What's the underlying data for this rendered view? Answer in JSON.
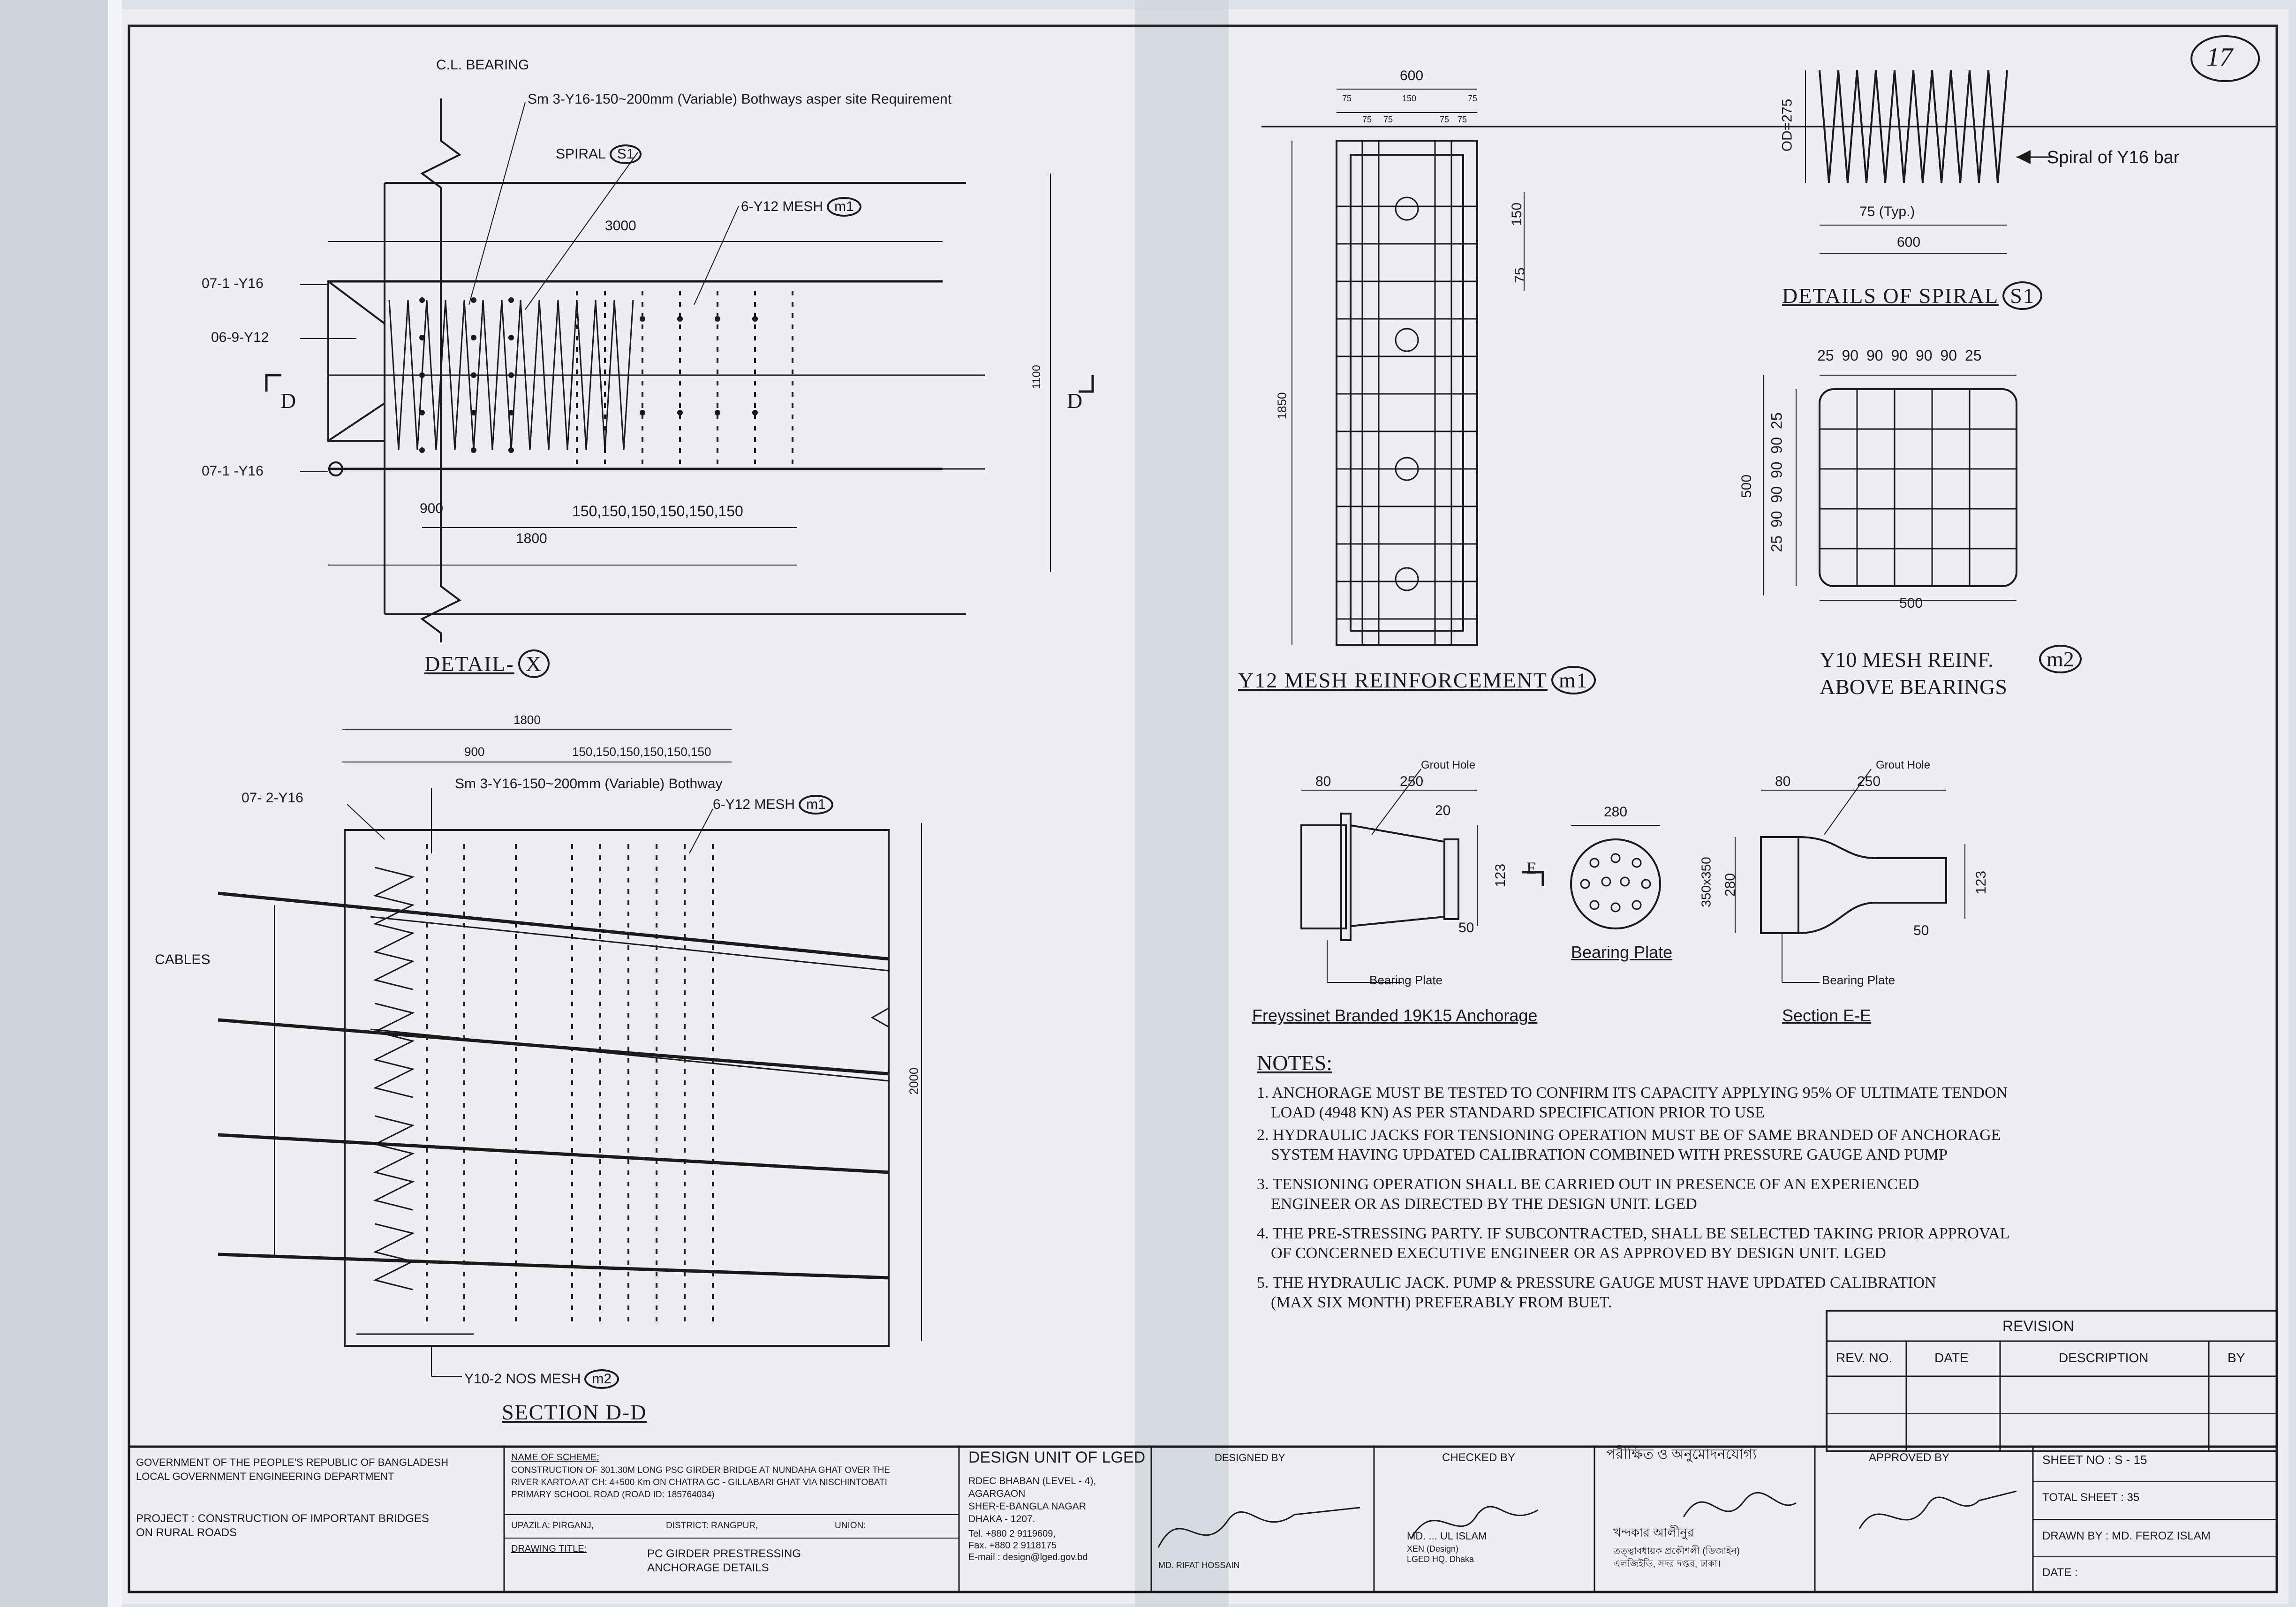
{
  "sheet_number_circle": "17",
  "detail_x": {
    "title": "DETAIL-",
    "tag": "X",
    "label_cl_bearing": "C.L. BEARING",
    "label_sm": "Sm 3-Y16-150~200mm (Variable) Bothways asper site Requirement",
    "label_spiral": "SPIRAL",
    "spiral_tag": "S1",
    "label_mesh": "6-Y12 MESH",
    "mesh_tag": "m1",
    "dim_3000": "3000",
    "bar_07_top": "07-1 -Y16",
    "bar_06": "06-9-Y12",
    "bar_07_bot": "07-1 -Y16",
    "section_mark_left": "D",
    "section_mark_right": "D",
    "dim_1100": "1100",
    "dim_900": "900",
    "dim_150s": "150,150,150,150,150,150",
    "dim_1800": "1800"
  },
  "section_dd": {
    "title": "SECTION D-D",
    "dim_1800": "1800",
    "dim_900": "900",
    "dim_150s": "150,150,150,150,150,150",
    "bar_07": "07- 2-Y16",
    "label_sm": "Sm 3-Y16-150~200mm (Variable) Bothway",
    "label_mesh": "6-Y12 MESH",
    "mesh_tag": "m1",
    "label_cables": "CABLES",
    "dim_2000": "2000",
    "label_y10": "Y10-2 NOS MESH",
    "y10_tag": "m2"
  },
  "mesh_m1": {
    "title": "Y12 MESH REINFORCEMENT",
    "tag": "m1",
    "dim_600": "600",
    "dim_75a": "75",
    "dim_150": "150",
    "dim_75b": "75",
    "dim_75c": "75",
    "dim_75d": "75",
    "dim_75e": "75",
    "dim_75f": "75",
    "dim_1850": "1850",
    "dim_150v": "150",
    "dim_75v": "75"
  },
  "spiral_s1": {
    "title": "DETAILS OF SPIRAL",
    "tag": "S1",
    "od": "OD=275",
    "label_spiral_bar": "Spiral of Y16 bar",
    "dim_75typ": "75 (Typ.)",
    "dim_600": "600"
  },
  "mesh_m2": {
    "title_line1": "Y10 MESH REINF.",
    "title_line2": "ABOVE BEARINGS",
    "tag": "m2",
    "dim_top": "25 90 90 90 90 90 25",
    "dim_side": "25 90 90 90 90 25",
    "dim_500v": "500",
    "dim_500h": "500"
  },
  "anchorage": {
    "title": "Freyssinet Branded 19K15 Anchorage",
    "grout_hole": "Grout Hole",
    "dim_80": "80",
    "dim_250": "250",
    "dim_20": "20",
    "dim_123": "123",
    "dim_50": "50",
    "section_mark": "E",
    "bearing_plate_label": "Bearing Plate"
  },
  "bearing_plate": {
    "title": "Bearing Plate",
    "dim_280": "280"
  },
  "section_ee": {
    "title": "Section E-E",
    "grout_hole": "Grout Hole",
    "dim_80": "80",
    "dim_250": "250",
    "dim_350": "350x350",
    "dim_280": "280",
    "dim_123": "123",
    "dim_50": "50",
    "bearing_plate_label": "Bearing Plate"
  },
  "notes": {
    "title": "NOTES:",
    "lines": [
      "1. ANCHORAGE MUST BE TESTED TO CONFIRM ITS CAPACITY APPLYING 95% OF ULTIMATE TENDON",
      "LOAD (4948 KN) AS PER STANDARD SPECIFICATION PRIOR TO USE",
      "2. HYDRAULIC JACKS FOR TENSIONING OPERATION MUST BE OF SAME BRANDED OF ANCHORAGE",
      "SYSTEM HAVING UPDATED CALIBRATION COMBINED WITH PRESSURE GAUGE AND PUMP",
      "3. TENSIONING OPERATION SHALL BE CARRIED OUT IN PRESENCE OF AN EXPERIENCED",
      "ENGINEER OR AS DIRECTED BY THE DESIGN UNIT. LGED",
      "4. THE PRE-STRESSING PARTY. IF SUBCONTRACTED, SHALL BE SELECTED TAKING PRIOR APPROVAL",
      "OF CONCERNED EXECUTIVE ENGINEER OR AS APPROVED BY DESIGN UNIT. LGED",
      "5. THE HYDRAULIC JACK. PUMP & PRESSURE GAUGE MUST HAVE UPDATED CALIBRATION",
      "(MAX SIX MONTH) PREFERABLY FROM BUET."
    ]
  },
  "revision": {
    "title": "REVISION",
    "col_rev": "REV. NO.",
    "col_date": "DATE",
    "col_desc": "DESCRIPTION",
    "col_by": "BY"
  },
  "title_block": {
    "gov_line1": "GOVERNMENT OF THE PEOPLE'S REPUBLIC OF BANGLADESH",
    "gov_line2": "LOCAL GOVERNMENT ENGINEERING DEPARTMENT",
    "project_line1": "PROJECT : CONSTRUCTION OF IMPORTANT BRIDGES",
    "project_line2": "ON RURAL ROADS",
    "scheme_head": "NAME OF SCHEME:",
    "scheme_l1": "CONSTRUCTION OF 301.30M LONG PSC GIRDER BRIDGE AT NUNDAHA GHAT OVER THE",
    "scheme_l2": "RIVER KARTOA AT CH: 4+500 Km ON CHATRA GC - GILLABARI GHAT VIA NISCHINTOBATI",
    "scheme_l3": "PRIMARY SCHOOL ROAD (ROAD ID: 185764034)",
    "upazila": "UPAZILA: PIRGANJ,",
    "district": "DISTRICT: RANGPUR,",
    "union": "UNION:",
    "drawing_title_head": "DRAWING TITLE:",
    "drawing_title_l1": "PC GIRDER PRESTRESSING",
    "drawing_title_l2": "ANCHORAGE DETAILS",
    "design_unit": "DESIGN UNIT OF LGED",
    "address_l1": "RDEC BHABAN (LEVEL - 4),",
    "address_l2": "AGARGAON",
    "address_l3": "SHER-E-BANGLA NAGAR",
    "address_l4": "DHAKA - 1207.",
    "tel": "Tel.   +880 2 9119609,",
    "fax": "Fax.   +880 2 9118175",
    "email": "E-mail : design@lged.gov.bd",
    "designed_by": "DESIGNED BY",
    "designed_name": "MD. RIFAT HOSSAIN",
    "checked_by": "CHECKED BY",
    "checked_name": "MD. ... UL ISLAM",
    "checked_sub1": "XEN (Design)",
    "checked_sub2": "LGED HQ, Dhaka",
    "verified_bn": "পরীক্ষিত ও অনুমোদনযোগ্য",
    "verified_name_bn": "খন্দকার আলীনুর",
    "verified_sub1_bn": "তত্ত্বাবধায়ক প্রকৌশলী (ডিজাইন)",
    "verified_sub2_bn": "এলজিইডি, সদর দপ্তর, ঢাকা।",
    "approved_by": "APPROVED BY",
    "sheet_no": "SHEET NO :  S - 15",
    "total_sheet": "TOTAL SHEET : 35",
    "drawn_by": "DRAWN BY : MD. FEROZ ISLAM",
    "date": "DATE :"
  }
}
